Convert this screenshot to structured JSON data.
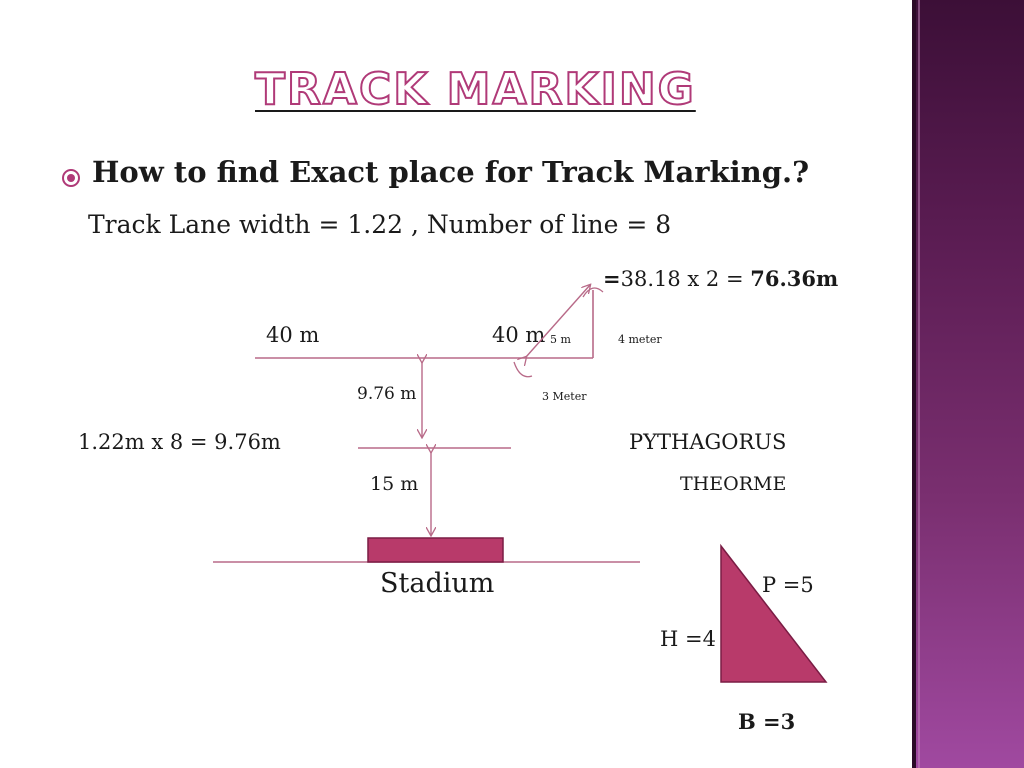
{
  "title": "TRACK MARKING",
  "question": "How to find Exact place for Track Marking.?",
  "lane_info": "Track Lane width = 1.22 , Number of line = 8",
  "result": {
    "prefix": "=",
    "expr": "38.18 x 2 = ",
    "answer": "76.36m"
  },
  "labels": {
    "left_40": "40 m",
    "right_40": "40 m",
    "five_m": "5 m",
    "four_meter": "4 meter",
    "three_meter": "3 Meter",
    "nine_76": "9.76 m",
    "calc": "1.22m x 8 = 9.76m",
    "pythagorus": "PYTHAGORUS",
    "theorme": "THEORME",
    "fifteen": "15 m",
    "stadium": "Stadium",
    "p": "P =5",
    "h": "H =4",
    "b": "B =3"
  },
  "colors": {
    "accent": "#b03a78",
    "fill": "#b83a6a",
    "line": "#b86a88"
  }
}
